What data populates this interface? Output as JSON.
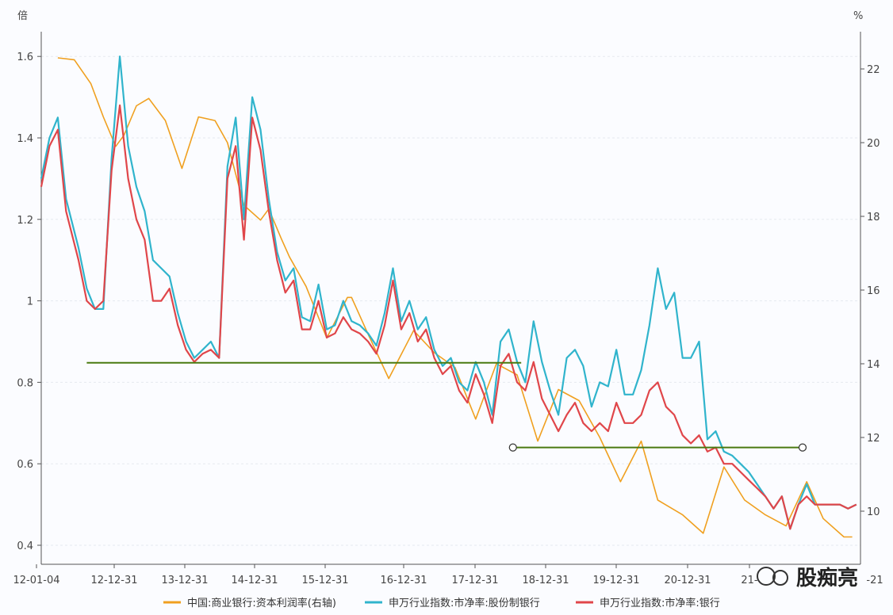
{
  "chart_data": {
    "type": "line",
    "title": "",
    "left_unit": "倍",
    "right_unit": "%",
    "ylim_left": [
      0.4,
      1.7
    ],
    "ylim_right": [
      9,
      23
    ],
    "yticks_left": [
      "0.4",
      "0.6",
      "0.8",
      "1",
      "1.2",
      "1.4",
      "1.6"
    ],
    "yticks_right": [
      "10",
      "12",
      "14",
      "16",
      "18",
      "20",
      "22"
    ],
    "xticks": [
      "12-01-04",
      "12-12-31",
      "13-12-31",
      "14-12-31",
      "15-12-31",
      "16-12-31",
      "17-12-31",
      "18-12-31",
      "19-12-31",
      "20-12-31",
      "21-",
      "-21"
    ],
    "xlim": [
      2012.0,
      2021.9
    ],
    "series": [
      {
        "name": "中国:商业银行:资本利润率(右轴)",
        "axis": "right",
        "color": "#f0a020",
        "x": [
          2012.2,
          2012.4,
          2012.6,
          2012.75,
          2012.9,
          2013.0,
          2013.15,
          2013.3,
          2013.5,
          2013.7,
          2013.9,
          2014.1,
          2014.25,
          2014.45,
          2014.65,
          2014.75,
          2014.9,
          2015.0,
          2015.2,
          2015.45,
          2015.7,
          2015.75,
          2015.95,
          2016.2,
          2016.5,
          2016.75,
          2017.0,
          2017.25,
          2017.5,
          2017.75,
          2018.0,
          2018.25,
          2018.5,
          2018.75,
          2019.0,
          2019.25,
          2019.45,
          2019.75,
          2020.0,
          2020.25,
          2020.5,
          2020.75,
          2021.0,
          2021.25,
          2021.45,
          2021.7,
          2021.8
        ],
        "y": [
          22.3,
          22.25,
          21.6,
          20.7,
          19.9,
          20.2,
          21.0,
          21.2,
          20.6,
          19.3,
          20.7,
          20.6,
          20.0,
          18.3,
          17.9,
          18.2,
          17.4,
          16.9,
          16.1,
          14.7,
          15.8,
          15.8,
          14.8,
          13.6,
          14.9,
          14.3,
          13.9,
          12.5,
          14.0,
          13.7,
          11.9,
          13.3,
          13.0,
          12.0,
          10.8,
          11.9,
          10.3,
          9.9,
          9.4,
          11.2,
          10.3,
          9.9,
          9.6,
          10.8,
          9.8,
          9.3,
          9.3
        ]
      },
      {
        "name": "申万行业指数:市净率:股份制银行",
        "axis": "left",
        "color": "#30b4cc",
        "x": [
          2012.0,
          2012.1,
          2012.2,
          2012.3,
          2012.45,
          2012.55,
          2012.65,
          2012.75,
          2012.85,
          2012.95,
          2013.05,
          2013.15,
          2013.25,
          2013.35,
          2013.45,
          2013.55,
          2013.65,
          2013.75,
          2013.85,
          2013.95,
          2014.05,
          2014.15,
          2014.25,
          2014.35,
          2014.45,
          2014.55,
          2014.65,
          2014.75,
          2014.85,
          2014.95,
          2015.05,
          2015.15,
          2015.25,
          2015.35,
          2015.45,
          2015.55,
          2015.65,
          2015.75,
          2015.85,
          2015.95,
          2016.05,
          2016.15,
          2016.25,
          2016.35,
          2016.45,
          2016.55,
          2016.65,
          2016.75,
          2016.85,
          2016.95,
          2017.05,
          2017.15,
          2017.25,
          2017.35,
          2017.45,
          2017.55,
          2017.65,
          2017.75,
          2017.85,
          2017.95,
          2018.05,
          2018.15,
          2018.25,
          2018.35,
          2018.45,
          2018.55,
          2018.65,
          2018.75,
          2018.85,
          2018.95,
          2019.05,
          2019.15,
          2019.25,
          2019.35,
          2019.45,
          2019.55,
          2019.65,
          2019.75,
          2019.85,
          2019.95,
          2020.05,
          2020.15,
          2020.25,
          2020.35,
          2020.45,
          2020.55,
          2020.65,
          2020.75,
          2020.85,
          2020.95,
          2021.05,
          2021.15,
          2021.25,
          2021.35,
          2021.45,
          2021.55,
          2021.65,
          2021.75,
          2021.85
        ],
        "y": [
          1.3,
          1.4,
          1.45,
          1.25,
          1.13,
          1.03,
          0.98,
          0.98,
          1.35,
          1.6,
          1.38,
          1.28,
          1.22,
          1.1,
          1.08,
          1.06,
          0.97,
          0.9,
          0.86,
          0.88,
          0.9,
          0.86,
          1.33,
          1.45,
          1.2,
          1.5,
          1.42,
          1.25,
          1.12,
          1.05,
          1.08,
          0.96,
          0.95,
          1.04,
          0.93,
          0.94,
          1.0,
          0.95,
          0.94,
          0.92,
          0.89,
          0.97,
          1.08,
          0.95,
          1.0,
          0.93,
          0.96,
          0.88,
          0.84,
          0.86,
          0.8,
          0.78,
          0.85,
          0.8,
          0.72,
          0.9,
          0.93,
          0.85,
          0.8,
          0.95,
          0.85,
          0.78,
          0.72,
          0.86,
          0.88,
          0.84,
          0.74,
          0.8,
          0.79,
          0.88,
          0.77,
          0.77,
          0.83,
          0.94,
          1.08,
          0.98,
          1.02,
          0.86,
          0.86,
          0.9,
          0.66,
          0.68,
          0.63,
          0.62,
          0.6,
          0.58,
          0.55,
          0.52,
          0.49,
          0.52,
          0.44,
          0.5,
          0.55,
          0.5,
          0.5,
          0.5,
          0.5,
          0.49,
          0.5
        ]
      },
      {
        "name": "申万行业指数:市净率:银行",
        "axis": "left",
        "color": "#e0464a",
        "x": [
          2012.0,
          2012.1,
          2012.2,
          2012.3,
          2012.45,
          2012.55,
          2012.65,
          2012.75,
          2012.85,
          2012.95,
          2013.05,
          2013.15,
          2013.25,
          2013.35,
          2013.45,
          2013.55,
          2013.65,
          2013.75,
          2013.85,
          2013.95,
          2014.05,
          2014.15,
          2014.25,
          2014.35,
          2014.45,
          2014.55,
          2014.65,
          2014.75,
          2014.85,
          2014.95,
          2015.05,
          2015.15,
          2015.25,
          2015.35,
          2015.45,
          2015.55,
          2015.65,
          2015.75,
          2015.85,
          2015.95,
          2016.05,
          2016.15,
          2016.25,
          2016.35,
          2016.45,
          2016.55,
          2016.65,
          2016.75,
          2016.85,
          2016.95,
          2017.05,
          2017.15,
          2017.25,
          2017.35,
          2017.45,
          2017.55,
          2017.65,
          2017.75,
          2017.85,
          2017.95,
          2018.05,
          2018.15,
          2018.25,
          2018.35,
          2018.45,
          2018.55,
          2018.65,
          2018.75,
          2018.85,
          2018.95,
          2019.05,
          2019.15,
          2019.25,
          2019.35,
          2019.45,
          2019.55,
          2019.65,
          2019.75,
          2019.85,
          2019.95,
          2020.05,
          2020.15,
          2020.25,
          2020.35,
          2020.45,
          2020.55,
          2020.65,
          2020.75,
          2020.85,
          2020.95,
          2021.05,
          2021.15,
          2021.25,
          2021.35,
          2021.45,
          2021.55,
          2021.65,
          2021.75,
          2021.85
        ],
        "y": [
          1.28,
          1.38,
          1.42,
          1.22,
          1.1,
          1.0,
          0.98,
          1.0,
          1.32,
          1.48,
          1.3,
          1.2,
          1.15,
          1.0,
          1.0,
          1.03,
          0.94,
          0.88,
          0.85,
          0.87,
          0.88,
          0.86,
          1.3,
          1.38,
          1.15,
          1.45,
          1.37,
          1.22,
          1.1,
          1.02,
          1.05,
          0.93,
          0.93,
          1.0,
          0.91,
          0.92,
          0.96,
          0.93,
          0.92,
          0.9,
          0.87,
          0.94,
          1.05,
          0.93,
          0.97,
          0.9,
          0.93,
          0.86,
          0.82,
          0.84,
          0.78,
          0.75,
          0.82,
          0.77,
          0.7,
          0.84,
          0.87,
          0.8,
          0.78,
          0.85,
          0.76,
          0.72,
          0.68,
          0.72,
          0.75,
          0.7,
          0.68,
          0.7,
          0.68,
          0.75,
          0.7,
          0.7,
          0.72,
          0.78,
          0.8,
          0.74,
          0.72,
          0.67,
          0.65,
          0.67,
          0.63,
          0.64,
          0.6,
          0.6,
          0.58,
          0.56,
          0.54,
          0.52,
          0.49,
          0.52,
          0.44,
          0.5,
          0.52,
          0.5,
          0.5,
          0.5,
          0.5,
          0.49,
          0.5
        ]
      }
    ],
    "annotations": [
      {
        "type": "hline",
        "axis": "left",
        "y": 0.848,
        "x_from": 2012.55,
        "x_to": 2017.8,
        "color": "#4a7a10",
        "endpoints": false
      },
      {
        "type": "hline",
        "axis": "left",
        "y": 0.64,
        "x_from": 2017.7,
        "x_to": 2021.2,
        "color": "#4a7a10",
        "endpoints": true
      }
    ],
    "legend_position": "bottom",
    "grid": "horizontal"
  },
  "watermark": {
    "text": "股痴亮"
  }
}
